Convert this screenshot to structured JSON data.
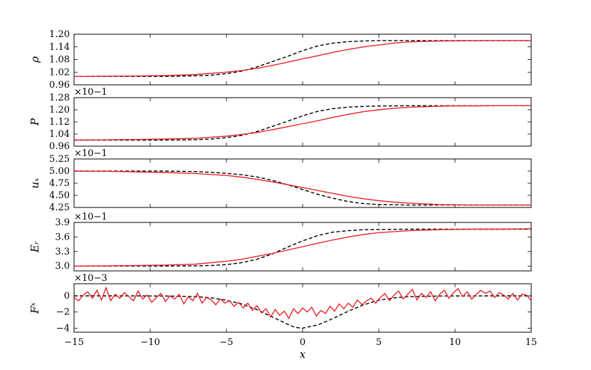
{
  "chart_data": [
    {
      "type": "line",
      "ylabel": "ρ",
      "exponent": "",
      "ylim": [
        0.96,
        1.2
      ],
      "yticks": [
        "1.20",
        "1.14",
        "1.08",
        "1.02",
        "0.96"
      ],
      "yticks_values": [
        1.2,
        1.14,
        1.08,
        1.02,
        0.96
      ],
      "xlim": [
        -15,
        15
      ],
      "series": [
        {
          "style": "dashed",
          "color": "#000000",
          "x": [
            -15,
            -13,
            -11,
            -9,
            -7,
            -6,
            -5,
            -4,
            -3,
            -2,
            -1,
            0,
            1,
            2,
            3,
            4,
            5,
            7,
            9,
            11,
            13,
            15
          ],
          "y": [
            1.0,
            1.0,
            1.0,
            1.0,
            1.003,
            1.006,
            1.013,
            1.025,
            1.045,
            1.07,
            1.095,
            1.122,
            1.145,
            1.158,
            1.165,
            1.168,
            1.17,
            1.17,
            1.17,
            1.17,
            1.17,
            1.17
          ]
        },
        {
          "style": "solid",
          "color": "#e8262b",
          "x": [
            -15,
            -13,
            -11,
            -9,
            -7,
            -5,
            -4,
            -3,
            -2,
            -1,
            0,
            1,
            2,
            3,
            4,
            5,
            6,
            7,
            9,
            11,
            13,
            15
          ],
          "y": [
            1.0,
            1.001,
            1.002,
            1.004,
            1.009,
            1.02,
            1.028,
            1.038,
            1.052,
            1.067,
            1.083,
            1.098,
            1.114,
            1.128,
            1.14,
            1.149,
            1.158,
            1.164,
            1.168,
            1.169,
            1.17,
            1.17
          ]
        }
      ]
    },
    {
      "type": "line",
      "ylabel": "P",
      "exponent": "×10−1",
      "ylim": [
        0.96,
        1.28
      ],
      "yticks": [
        "1.28",
        "1.20",
        "1.12",
        "1.04",
        "0.96"
      ],
      "yticks_values": [
        1.28,
        1.2,
        1.12,
        1.04,
        0.96
      ],
      "xlim": [
        -15,
        15
      ],
      "series": [
        {
          "style": "dashed",
          "color": "#000000",
          "x": [
            -15,
            -13,
            -11,
            -9,
            -7,
            -6,
            -5,
            -4,
            -3,
            -2,
            -1,
            0,
            1,
            2,
            3,
            4,
            5,
            7,
            9,
            11,
            13,
            15
          ],
          "y": [
            1.0,
            1.0,
            1.0,
            1.0,
            1.003,
            1.007,
            1.016,
            1.031,
            1.056,
            1.09,
            1.124,
            1.16,
            1.19,
            1.208,
            1.218,
            1.222,
            1.225,
            1.227,
            1.227,
            1.227,
            1.227,
            1.227
          ]
        },
        {
          "style": "solid",
          "color": "#e8262b",
          "x": [
            -15,
            -13,
            -11,
            -9,
            -7,
            -5,
            -4,
            -3,
            -2,
            -1,
            0,
            1,
            2,
            3,
            4,
            5,
            6,
            7,
            9,
            11,
            13,
            15
          ],
          "y": [
            1.0,
            1.002,
            1.004,
            1.007,
            1.012,
            1.026,
            1.037,
            1.05,
            1.068,
            1.088,
            1.108,
            1.128,
            1.15,
            1.17,
            1.188,
            1.2,
            1.21,
            1.217,
            1.224,
            1.226,
            1.227,
            1.227
          ]
        }
      ]
    },
    {
      "type": "line",
      "ylabel": "uₓ",
      "exponent": "×10−1",
      "ylim": [
        4.25,
        5.25
      ],
      "yticks": [
        "5.25",
        "5.00",
        "4.75",
        "4.50",
        "4.25"
      ],
      "yticks_values": [
        5.25,
        5.0,
        4.75,
        4.5,
        4.25
      ],
      "xlim": [
        -15,
        15
      ],
      "series": [
        {
          "style": "dashed",
          "color": "#000000",
          "x": [
            -15,
            -13,
            -11,
            -9,
            -7,
            -6,
            -5,
            -4,
            -3,
            -2,
            -1,
            0,
            1,
            2,
            3,
            4,
            5,
            7,
            9,
            11,
            13,
            15
          ],
          "y": [
            5.0,
            5.0,
            5.0,
            5.0,
            4.99,
            4.975,
            4.955,
            4.925,
            4.88,
            4.81,
            4.72,
            4.62,
            4.52,
            4.44,
            4.37,
            4.33,
            4.31,
            4.3,
            4.3,
            4.3,
            4.3,
            4.3
          ]
        },
        {
          "style": "solid",
          "color": "#e8262b",
          "x": [
            -15,
            -13,
            -11,
            -9,
            -7,
            -5,
            -4,
            -3,
            -2,
            -1,
            0,
            1,
            2,
            3,
            4,
            5,
            6,
            7,
            9,
            11,
            13,
            15
          ],
          "y": [
            5.0,
            4.995,
            4.985,
            4.97,
            4.95,
            4.91,
            4.875,
            4.83,
            4.78,
            4.72,
            4.66,
            4.6,
            4.54,
            4.48,
            4.43,
            4.39,
            4.36,
            4.34,
            4.31,
            4.3,
            4.3,
            4.3
          ]
        }
      ]
    },
    {
      "type": "line",
      "ylabel": "Eᵣ",
      "exponent": "×10−1",
      "ylim": [
        2.9,
        3.9
      ],
      "yticks": [
        "3.9",
        "3.6",
        "3.3",
        "3.0"
      ],
      "yticks_values": [
        3.9,
        3.6,
        3.3,
        3.0
      ],
      "xlim": [
        -15,
        15
      ],
      "series": [
        {
          "style": "dashed",
          "color": "#000000",
          "x": [
            -15,
            -13,
            -11,
            -9,
            -7,
            -6,
            -5,
            -4,
            -3,
            -2,
            -1,
            0,
            1,
            2,
            3,
            4,
            5,
            7,
            9,
            11,
            13,
            15
          ],
          "y": [
            3.0,
            3.0,
            3.0,
            3.0,
            3.005,
            3.012,
            3.03,
            3.07,
            3.14,
            3.25,
            3.39,
            3.52,
            3.63,
            3.7,
            3.73,
            3.75,
            3.755,
            3.76,
            3.76,
            3.76,
            3.76,
            3.76
          ]
        },
        {
          "style": "solid",
          "color": "#e8262b",
          "x": [
            -15,
            -13,
            -11,
            -9,
            -7,
            -5,
            -4,
            -3,
            -2,
            -1,
            0,
            1,
            2,
            3,
            4,
            5,
            6,
            7,
            9,
            11,
            13,
            15
          ],
          "y": [
            3.0,
            3.005,
            3.01,
            3.02,
            3.04,
            3.1,
            3.14,
            3.2,
            3.26,
            3.33,
            3.4,
            3.47,
            3.54,
            3.6,
            3.65,
            3.69,
            3.71,
            3.73,
            3.75,
            3.76,
            3.76,
            3.77
          ]
        }
      ]
    },
    {
      "type": "line",
      "ylabel": "Fˣ",
      "exponent": "×10−3",
      "ylim": [
        -4.5,
        1.5
      ],
      "yticks": [
        "0",
        "−2",
        "−4"
      ],
      "yticks_values": [
        0,
        -2,
        -4
      ],
      "xlim": [
        -15,
        15
      ],
      "series": [
        {
          "style": "dashed",
          "color": "#000000",
          "x": [
            -15,
            -12,
            -9,
            -7,
            -6,
            -5,
            -4,
            -3,
            -2,
            -1,
            -0.5,
            0,
            1,
            2,
            3,
            4,
            5,
            6,
            7,
            9,
            12,
            15
          ],
          "y": [
            0,
            0,
            -0.02,
            -0.1,
            -0.25,
            -0.55,
            -1.0,
            -1.7,
            -2.6,
            -3.5,
            -3.9,
            -4.0,
            -3.6,
            -2.8,
            -1.9,
            -1.1,
            -0.55,
            -0.25,
            -0.1,
            -0.02,
            0,
            0
          ]
        },
        {
          "style": "solid",
          "color": "#e8262b",
          "x": [
            -15,
            -14.7,
            -14.4,
            -14.1,
            -13.8,
            -13.5,
            -13.2,
            -12.9,
            -12.6,
            -12.3,
            -12,
            -11.7,
            -11.4,
            -11.1,
            -10.8,
            -10.5,
            -10.2,
            -9.9,
            -9.6,
            -9.3,
            -9,
            -8.7,
            -8.4,
            -8.1,
            -7.8,
            -7.5,
            -7.2,
            -6.9,
            -6.6,
            -6.3,
            -6,
            -5.7,
            -5.4,
            -5.1,
            -4.8,
            -4.5,
            -4.2,
            -3.9,
            -3.6,
            -3.3,
            -3,
            -2.7,
            -2.4,
            -2.1,
            -1.8,
            -1.5,
            -1.2,
            -0.9,
            -0.6,
            -0.3,
            0,
            0.3,
            0.6,
            0.9,
            1.2,
            1.5,
            1.8,
            2.1,
            2.4,
            2.7,
            3,
            3.3,
            3.6,
            3.9,
            4.2,
            4.5,
            4.8,
            5.1,
            5.4,
            5.7,
            6,
            6.3,
            6.6,
            6.9,
            7.2,
            7.5,
            7.8,
            8.1,
            8.4,
            8.7,
            9,
            9.3,
            9.6,
            9.9,
            10.2,
            10.5,
            10.8,
            11.1,
            11.4,
            11.7,
            12,
            12.3,
            12.6,
            12.9,
            13.2,
            13.5,
            13.8,
            14.1,
            14.4,
            14.7,
            15
          ],
          "y": [
            -0.2,
            -0.6,
            0.1,
            0.5,
            -0.3,
            0.7,
            -0.5,
            1.0,
            -0.6,
            0.2,
            -0.3,
            0.4,
            -0.1,
            -0.6,
            0.6,
            -0.4,
            0.1,
            -0.8,
            -0.2,
            0.3,
            -0.7,
            0.0,
            -0.4,
            0.2,
            -1.0,
            -0.1,
            -0.6,
            0.3,
            -0.9,
            -0.2,
            -0.5,
            -1.1,
            -0.4,
            -0.9,
            -0.6,
            -1.3,
            -0.8,
            -1.5,
            -0.9,
            -1.8,
            -1.2,
            -2.1,
            -1.6,
            -2.6,
            -1.7,
            -2.4,
            -1.9,
            -2.8,
            -1.6,
            -2.2,
            -1.5,
            -2.0,
            -1.4,
            -2.5,
            -1.8,
            -2.2,
            -1.3,
            -1.9,
            -1.0,
            -1.6,
            -0.9,
            -1.4,
            -0.5,
            -1.1,
            -0.6,
            -0.3,
            -0.9,
            -0.2,
            0.3,
            -0.6,
            0.1,
            0.6,
            -0.4,
            0.2,
            0.8,
            -0.5,
            0.3,
            -0.2,
            0.5,
            -0.6,
            0.2,
            0.7,
            -0.3,
            0.4,
            0.9,
            -0.1,
            0.5,
            -0.4,
            0.2,
            0.7,
            0.3,
            0.6,
            -0.2,
            0.4,
            0.1,
            -0.4,
            0.3,
            -0.5,
            0.2,
            0.1,
            -0.6
          ]
        }
      ]
    }
  ],
  "x_axis": {
    "label": "x",
    "ticks": [
      "−15",
      "−10",
      "−5",
      "0",
      "5",
      "10",
      "15"
    ],
    "tick_values": [
      -15,
      -10,
      -5,
      0,
      5,
      10,
      15
    ]
  }
}
